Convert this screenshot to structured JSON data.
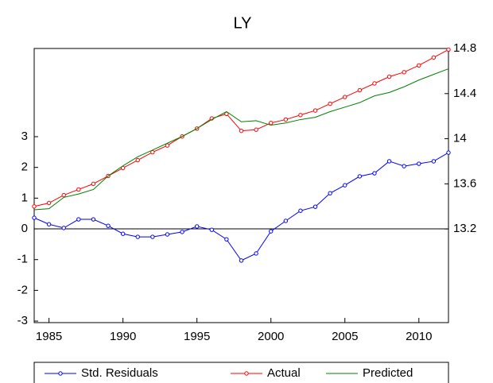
{
  "chart_data": {
    "type": "line",
    "title": "LY",
    "x": [
      1984,
      1985,
      1986,
      1987,
      1988,
      1989,
      1990,
      1991,
      1992,
      1993,
      1994,
      1995,
      1996,
      1997,
      1998,
      1999,
      2000,
      2001,
      2002,
      2003,
      2004,
      2005,
      2006,
      2007,
      2008,
      2009,
      2010,
      2011,
      2012
    ],
    "xlim": [
      1984,
      2012
    ],
    "xticks": [
      1985,
      1990,
      1995,
      2000,
      2005,
      2010
    ],
    "ylim": [
      -3.05,
      5.87
    ],
    "yticks": [
      -3,
      -2,
      -1,
      0,
      1,
      2,
      3
    ],
    "y2lim": [
      12.37,
      14.8
    ],
    "y2ticks": [
      13.2,
      13.6,
      14.0,
      14.4,
      14.8
    ],
    "series": [
      {
        "name": "Std. Residuals",
        "color": "#0000ff",
        "values": [
          0.36,
          0.15,
          0.03,
          0.31,
          0.31,
          0.1,
          -0.16,
          -0.26,
          -0.26,
          -0.18,
          -0.1,
          0.08,
          -0.03,
          -0.34,
          -1.03,
          -0.8,
          -0.08,
          0.26,
          0.59,
          0.72,
          1.16,
          1.42,
          1.71,
          1.81,
          2.2,
          2.04,
          2.12,
          2.2,
          2.48
        ]
      },
      {
        "name": "Actual",
        "color": "#ff0000",
        "axis": "y2",
        "values": [
          13.4,
          13.43,
          13.5,
          13.55,
          13.6,
          13.67,
          13.74,
          13.81,
          13.88,
          13.94,
          14.02,
          14.09,
          14.18,
          14.22,
          14.07,
          14.08,
          14.14,
          14.17,
          14.21,
          14.25,
          14.31,
          14.37,
          14.43,
          14.49,
          14.55,
          14.59,
          14.65,
          14.72,
          14.79
        ]
      },
      {
        "name": "Predicted",
        "color": "#008000",
        "axis": "y2",
        "values": [
          13.37,
          13.38,
          13.48,
          13.51,
          13.55,
          13.67,
          13.76,
          13.84,
          13.9,
          13.96,
          14.02,
          14.09,
          14.17,
          14.24,
          14.15,
          14.16,
          14.12,
          14.14,
          14.17,
          14.19,
          14.24,
          14.28,
          14.32,
          14.38,
          14.41,
          14.46,
          14.52,
          14.57,
          14.62
        ]
      }
    ]
  }
}
